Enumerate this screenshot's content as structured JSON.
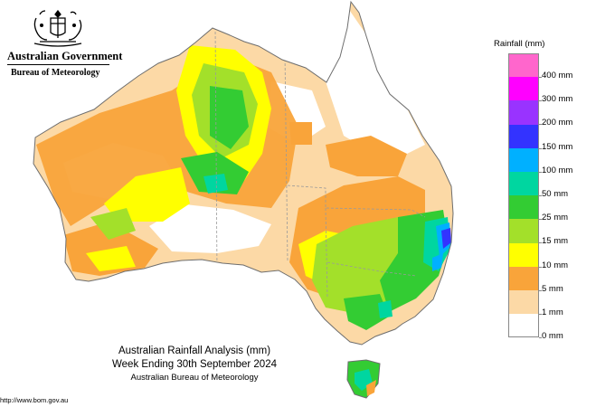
{
  "header": {
    "government": "Australian Government",
    "agency": "Bureau of Meteorology",
    "crest_icon": "coat-of-arms-icon"
  },
  "map": {
    "region": "Australia",
    "colors": {
      "land_outline": "#6e6e6e",
      "background": "#ffffff",
      "state_border": "#9a9a9a"
    }
  },
  "legend": {
    "title": "Rainfall (mm)",
    "bins": [
      {
        "label": "400 mm",
        "color": "#ff66cc"
      },
      {
        "label": "300 mm",
        "color": "#ff00ff"
      },
      {
        "label": "200 mm",
        "color": "#9933ff"
      },
      {
        "label": "150 mm",
        "color": "#3333ff"
      },
      {
        "label": "100 mm",
        "color": "#00b0ff"
      },
      {
        "label": "50 mm",
        "color": "#00d6a0"
      },
      {
        "label": "25 mm",
        "color": "#33cc33"
      },
      {
        "label": "15 mm",
        "color": "#a3e02a"
      },
      {
        "label": "10 mm",
        "color": "#ffff00"
      },
      {
        "label": "5 mm",
        "color": "#f9a43a"
      },
      {
        "label": "1 mm",
        "color": "#fcd9a6"
      },
      {
        "label": "0 mm",
        "color": "#ffffff"
      }
    ]
  },
  "caption": {
    "title": "Australian Rainfall Analysis (mm)",
    "period": "Week Ending 30th September 2024",
    "source": "Australian Bureau of Meteorology"
  },
  "footer": {
    "url": "http://www.bom.gov.au"
  }
}
